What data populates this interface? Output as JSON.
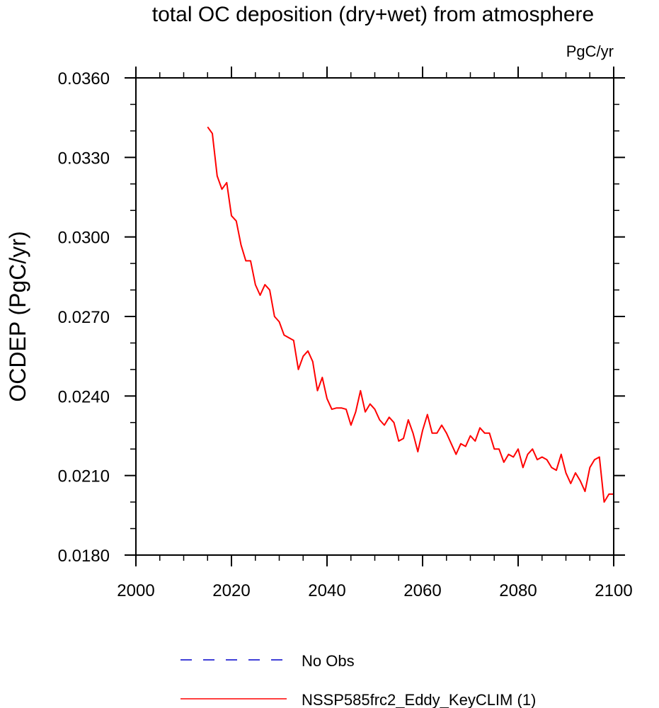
{
  "chart_data": {
    "type": "line",
    "title": "total OC deposition (dry+wet) from atmosphere",
    "units_label": "PgC/yr",
    "ylabel": "OCDEP  (PgC/yr)",
    "xlabel": "",
    "xlim": [
      2000,
      2100
    ],
    "ylim": [
      0.018,
      0.036
    ],
    "x_ticks": [
      2000,
      2020,
      2040,
      2060,
      2080,
      2100
    ],
    "x_minor_step": 5,
    "y_ticks": [
      0.018,
      0.021,
      0.024,
      0.027,
      0.03,
      0.033,
      0.036
    ],
    "y_tick_labels": [
      "0.0180",
      "0.0210",
      "0.0240",
      "0.0270",
      "0.0300",
      "0.0330",
      "0.0360"
    ],
    "y_minor_step": 0.001,
    "grid": false,
    "legend_placement": "bottom",
    "legend": [
      {
        "name": "No Obs",
        "color": "#0000cc",
        "dash": "dashed"
      },
      {
        "name": "NSSP585frc2_Eddy_KeyCLIM (1)",
        "color": "#ff0000",
        "dash": "solid"
      }
    ],
    "series": [
      {
        "name": "NSSP585frc2_Eddy_KeyCLIM (1)",
        "color": "#ff0000",
        "x": [
          2015,
          2016,
          2017,
          2018,
          2019,
          2020,
          2021,
          2022,
          2023,
          2024,
          2025,
          2026,
          2027,
          2028,
          2029,
          2030,
          2031,
          2032,
          2033,
          2034,
          2035,
          2036,
          2037,
          2038,
          2039,
          2040,
          2041,
          2042,
          2043,
          2044,
          2045,
          2046,
          2047,
          2048,
          2049,
          2050,
          2051,
          2052,
          2053,
          2054,
          2055,
          2056,
          2057,
          2058,
          2059,
          2060,
          2061,
          2062,
          2063,
          2064,
          2065,
          2066,
          2067,
          2068,
          2069,
          2070,
          2071,
          2072,
          2073,
          2074,
          2075,
          2076,
          2077,
          2078,
          2079,
          2080,
          2081,
          2082,
          2083,
          2084,
          2085,
          2086,
          2087,
          2088,
          2089,
          2090,
          2091,
          2092,
          2093,
          2094,
          2095,
          2096,
          2097,
          2098,
          2099,
          2100
        ],
        "y": [
          0.03415,
          0.0339,
          0.0323,
          0.0318,
          0.03205,
          0.0308,
          0.0306,
          0.0297,
          0.0291,
          0.0291,
          0.0282,
          0.0278,
          0.0282,
          0.028,
          0.027,
          0.0268,
          0.0263,
          0.0262,
          0.0261,
          0.025,
          0.0255,
          0.0257,
          0.0253,
          0.0242,
          0.0247,
          0.0239,
          0.0235,
          0.02355,
          0.02355,
          0.0235,
          0.0229,
          0.0234,
          0.0242,
          0.0234,
          0.0237,
          0.0235,
          0.0231,
          0.0229,
          0.0232,
          0.023,
          0.0223,
          0.0224,
          0.0231,
          0.0226,
          0.0219,
          0.0227,
          0.0233,
          0.0226,
          0.0226,
          0.0229,
          0.0226,
          0.0222,
          0.0218,
          0.0222,
          0.0221,
          0.0225,
          0.0223,
          0.0228,
          0.0226,
          0.0226,
          0.022,
          0.022,
          0.0215,
          0.0218,
          0.0217,
          0.022,
          0.0213,
          0.0218,
          0.022,
          0.0216,
          0.0217,
          0.0216,
          0.0213,
          0.0212,
          0.0218,
          0.0211,
          0.0207,
          0.0211,
          0.0208,
          0.0204,
          0.0213,
          0.0216,
          0.0217,
          0.02,
          0.0203,
          0.0203
        ]
      }
    ]
  }
}
